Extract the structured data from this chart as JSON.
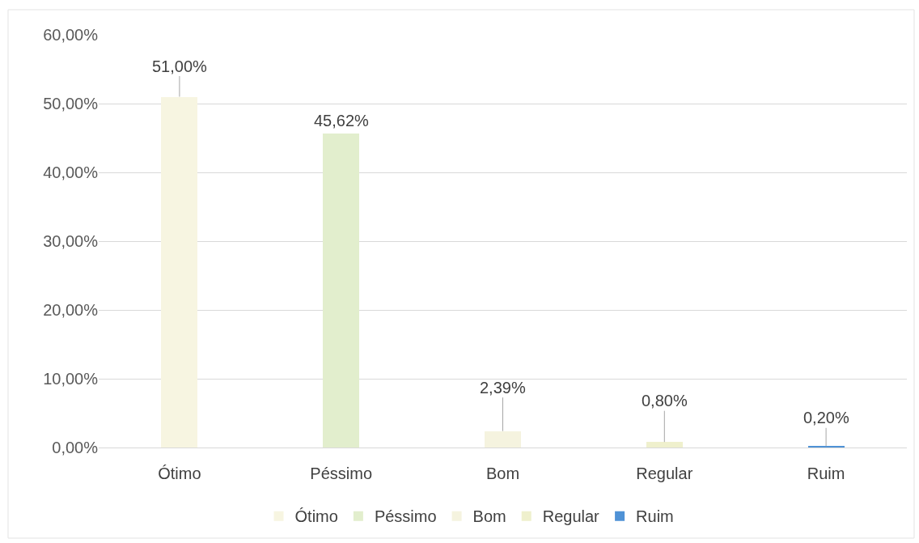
{
  "chart_data": {
    "type": "bar",
    "categories": [
      "Ótimo",
      "Péssimo",
      "Bom",
      "Regular",
      "Ruim"
    ],
    "series": [
      {
        "name": "Ótimo",
        "color": "#f7f5e1",
        "values": [
          51.0,
          null,
          null,
          null,
          null
        ],
        "value_labels": [
          "51,00%",
          null,
          null,
          null,
          null
        ]
      },
      {
        "name": "Péssimo",
        "color": "#e2eecd",
        "values": [
          null,
          45.62,
          null,
          null,
          null
        ],
        "value_labels": [
          null,
          "45,62%",
          null,
          null,
          null
        ]
      },
      {
        "name": "Bom",
        "color": "#f5f3df",
        "values": [
          null,
          null,
          2.39,
          null,
          null
        ],
        "value_labels": [
          null,
          null,
          "2,39%",
          null,
          null
        ]
      },
      {
        "name": "Regular",
        "color": "#eff0cd",
        "values": [
          null,
          null,
          null,
          0.8,
          null
        ],
        "value_labels": [
          null,
          null,
          null,
          "0,80%",
          null
        ]
      },
      {
        "name": "Ruim",
        "color": "#4f92d6",
        "values": [
          null,
          null,
          null,
          null,
          0.2
        ],
        "value_labels": [
          null,
          null,
          null,
          null,
          "0,20%"
        ]
      }
    ],
    "stacked": true,
    "ylim": [
      0,
      60
    ],
    "yticks": [
      {
        "value": 0,
        "label": "0,00%"
      },
      {
        "value": 10,
        "label": "10,00%"
      },
      {
        "value": 20,
        "label": "20,00%"
      },
      {
        "value": 30,
        "label": "30,00%"
      },
      {
        "value": 40,
        "label": "40,00%"
      },
      {
        "value": 50,
        "label": "50,00%"
      },
      {
        "value": 60,
        "label": "60,00%"
      }
    ],
    "grid": "y",
    "legend": "bottom"
  }
}
